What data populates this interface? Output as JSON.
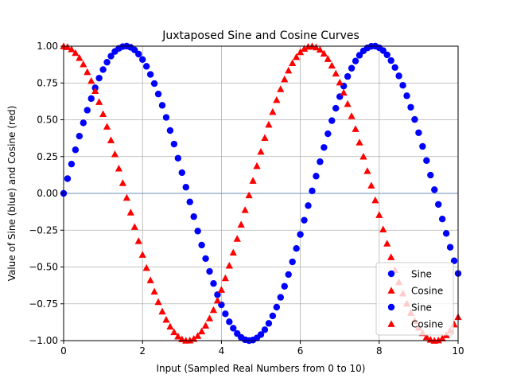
{
  "chart_data": {
    "type": "scatter",
    "title": "Juxtaposed Sine and Cosine Curves",
    "xlabel": "Input (Sampled Real Numbers from 0 to 10)",
    "ylabel": "Value of Sine (blue) and Cosine (red)",
    "xlim": [
      0,
      10
    ],
    "ylim": [
      -1.0,
      1.0
    ],
    "x_ticks": [
      "0",
      "2",
      "4",
      "6",
      "8",
      "10"
    ],
    "y_ticks": [
      "1.00",
      "0.75",
      "0.50",
      "0.25",
      "0.00",
      "−0.25",
      "−0.50",
      "−0.75",
      "−1.00"
    ],
    "grid": true,
    "legend_position": "lower-right",
    "x": [
      0.0,
      0.1,
      0.2,
      0.3,
      0.4,
      0.5,
      0.6,
      0.7,
      0.8,
      0.9,
      1.0,
      1.1,
      1.2,
      1.3,
      1.4,
      1.5,
      1.6,
      1.7,
      1.8,
      1.9,
      2.0,
      2.1,
      2.2,
      2.3,
      2.4,
      2.5,
      2.6,
      2.7,
      2.8,
      2.9,
      3.0,
      3.1,
      3.2,
      3.3,
      3.4,
      3.5,
      3.6,
      3.7,
      3.8,
      3.9,
      4.0,
      4.1,
      4.2,
      4.3,
      4.4,
      4.5,
      4.6,
      4.7,
      4.8,
      4.9,
      5.0,
      5.1,
      5.2,
      5.3,
      5.4,
      5.5,
      5.6,
      5.7,
      5.8,
      5.9,
      6.0,
      6.1,
      6.2,
      6.3,
      6.4,
      6.5,
      6.6,
      6.7,
      6.8,
      6.9,
      7.0,
      7.1,
      7.2,
      7.3,
      7.4,
      7.5,
      7.6,
      7.7,
      7.8,
      7.9,
      8.0,
      8.1,
      8.2,
      8.3,
      8.4,
      8.5,
      8.6,
      8.7,
      8.8,
      8.9,
      9.0,
      9.1,
      9.2,
      9.3,
      9.4,
      9.5,
      9.6,
      9.7,
      9.8,
      9.9,
      10.0
    ],
    "series": [
      {
        "name": "Sine",
        "marker": "circle",
        "color": "#0000ff",
        "values": [
          0.0,
          0.1,
          0.199,
          0.296,
          0.389,
          0.479,
          0.565,
          0.644,
          0.717,
          0.783,
          0.841,
          0.891,
          0.932,
          0.964,
          0.985,
          0.997,
          1.0,
          0.992,
          0.974,
          0.946,
          0.909,
          0.863,
          0.808,
          0.746,
          0.675,
          0.598,
          0.516,
          0.427,
          0.335,
          0.239,
          0.141,
          0.042,
          -0.058,
          -0.158,
          -0.256,
          -0.351,
          -0.443,
          -0.53,
          -0.612,
          -0.688,
          -0.757,
          -0.818,
          -0.872,
          -0.916,
          -0.952,
          -0.978,
          -0.994,
          -1.0,
          -0.996,
          -0.982,
          -0.959,
          -0.926,
          -0.883,
          -0.832,
          -0.773,
          -0.706,
          -0.631,
          -0.551,
          -0.465,
          -0.374,
          -0.279,
          -0.182,
          -0.083,
          0.017,
          0.117,
          0.215,
          0.312,
          0.405,
          0.494,
          0.578,
          0.657,
          0.729,
          0.794,
          0.85,
          0.899,
          0.938,
          0.968,
          0.988,
          0.999,
          1.0,
          0.989,
          0.97,
          0.941,
          0.902,
          0.855,
          0.798,
          0.734,
          0.663,
          0.585,
          0.502,
          0.412,
          0.319,
          0.223,
          0.124,
          0.025,
          -0.075,
          -0.174,
          -0.272,
          -0.366,
          -0.458,
          -0.544
        ]
      },
      {
        "name": "Cosine",
        "marker": "triangle",
        "color": "#ff0000",
        "values": [
          1.0,
          0.995,
          0.98,
          0.955,
          0.921,
          0.878,
          0.825,
          0.765,
          0.697,
          0.622,
          0.54,
          0.454,
          0.362,
          0.267,
          0.17,
          0.071,
          -0.029,
          -0.129,
          -0.227,
          -0.323,
          -0.416,
          -0.505,
          -0.589,
          -0.666,
          -0.737,
          -0.801,
          -0.857,
          -0.904,
          -0.942,
          -0.971,
          -0.99,
          -0.999,
          -0.998,
          -0.987,
          -0.967,
          -0.936,
          -0.897,
          -0.848,
          -0.791,
          -0.726,
          -0.654,
          -0.575,
          -0.49,
          -0.401,
          -0.307,
          -0.211,
          -0.112,
          -0.012,
          0.087,
          0.187,
          0.284,
          0.378,
          0.468,
          0.554,
          0.635,
          0.709,
          0.776,
          0.835,
          0.886,
          0.927,
          0.96,
          0.983,
          0.997,
          1.0,
          0.993,
          0.977,
          0.95,
          0.914,
          0.869,
          0.815,
          0.754,
          0.685,
          0.608,
          0.526,
          0.438,
          0.347,
          0.251,
          0.153,
          0.054,
          -0.046,
          -0.146,
          -0.244,
          -0.34,
          -0.432,
          -0.52,
          -0.602,
          -0.679,
          -0.748,
          -0.811,
          -0.865,
          -0.911,
          -0.948,
          -0.975,
          -0.993,
          -1.0,
          -0.997,
          -0.984,
          -0.962,
          -0.93,
          -0.889,
          -0.839
        ]
      }
    ],
    "legend": [
      {
        "label": "Sine",
        "marker": "circle",
        "color": "#0000ff"
      },
      {
        "label": "Cosine",
        "marker": "triangle",
        "color": "#ff0000"
      },
      {
        "label": "Sine",
        "marker": "circle",
        "color": "#0000ff"
      },
      {
        "label": "Cosine",
        "marker": "triangle",
        "color": "#ff0000"
      }
    ],
    "zero_line_color": "#6a8fb7"
  }
}
